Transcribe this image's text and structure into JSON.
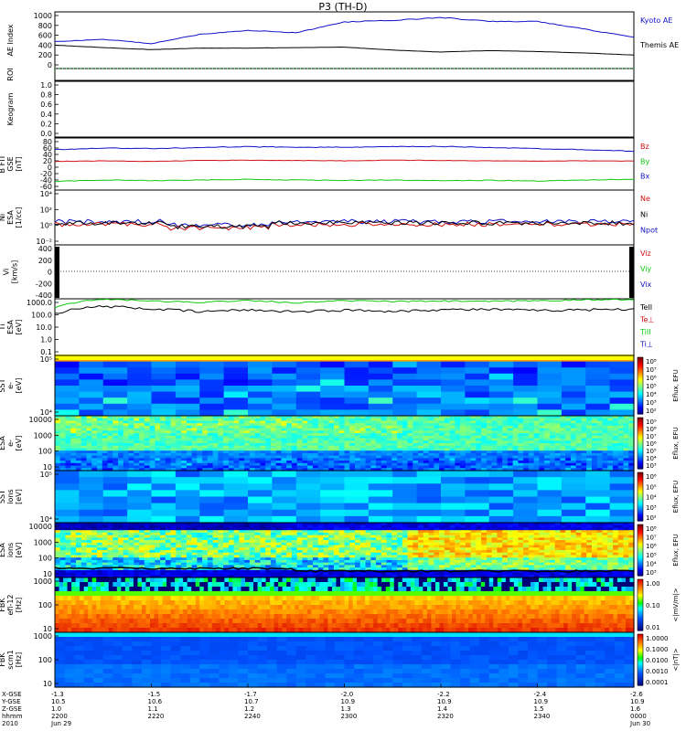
{
  "title": "P3 (TH-D)",
  "colors": {
    "blue": "#1010c8",
    "red": "#d01010",
    "green": "#10c810",
    "black": "#000000",
    "yellow": "#ffff00",
    "magenta": "#ff00ff"
  },
  "panels": [
    {
      "key": "ae",
      "ylabel": [
        "AE Index"
      ],
      "ticks": [
        "1000",
        "800",
        "600",
        "400",
        "200",
        "0"
      ],
      "legend": [
        {
          "text": "Kyoto AE",
          "color": "blue"
        },
        {
          "text": "Themis AE",
          "color": "black"
        }
      ]
    },
    {
      "key": "roi",
      "ylabel": [
        "ROI"
      ],
      "ticks": [],
      "legend": []
    },
    {
      "key": "keogram",
      "ylabel": [
        "Keogram"
      ],
      "ticks": [
        "1.0",
        "0.8",
        "0.6",
        "0.4",
        "0.2",
        "0.0"
      ],
      "legend": []
    },
    {
      "key": "bfit",
      "ylabel": [
        "B FIT",
        "GSE",
        "[nT]"
      ],
      "ticks": [
        "80",
        "60",
        "40",
        "20",
        "0",
        "-20",
        "-40",
        "-60"
      ],
      "legend": [
        {
          "text": "Bz",
          "color": "red"
        },
        {
          "text": "By",
          "color": "green"
        },
        {
          "text": "Bx",
          "color": "blue"
        }
      ]
    },
    {
      "key": "ni",
      "ylabel": [
        "Ni",
        "ESA",
        "[1/cc]"
      ],
      "ticks": [
        "10⁴",
        "10²",
        "10⁰",
        "10⁻²"
      ],
      "legend": [
        {
          "text": "Ne",
          "color": "red"
        },
        {
          "text": "Ni",
          "color": "black"
        },
        {
          "text": "Npot",
          "color": "blue"
        }
      ]
    },
    {
      "key": "vi",
      "ylabel": [
        "Vi",
        "[km/s]"
      ],
      "ticks": [
        "400",
        "200",
        "0",
        "-200",
        "-400"
      ],
      "legend": [
        {
          "text": "Viz",
          "color": "red"
        },
        {
          "text": "Viy",
          "color": "green"
        },
        {
          "text": "Vix",
          "color": "blue"
        }
      ]
    },
    {
      "key": "ti",
      "ylabel": [
        "Ti",
        "ESA",
        "[eV]"
      ],
      "ticks": [
        "1000.0",
        "100.0",
        "10.0",
        "1.0",
        "0.1"
      ],
      "legend": [
        {
          "text": "TeII",
          "color": "black"
        },
        {
          "text": "Te⊥",
          "color": "red"
        },
        {
          "text": "TiII",
          "color": "green"
        },
        {
          "text": "Ti⊥",
          "color": "blue"
        }
      ]
    },
    {
      "key": "sste",
      "ylabel": [
        "SST",
        "e-",
        "[eV]"
      ],
      "ticks": [
        "10⁵",
        "10⁴"
      ],
      "legend": []
    },
    {
      "key": "esae",
      "ylabel": [
        "ESA",
        "e-",
        "[eV]"
      ],
      "ticks": [
        "10000",
        "1000",
        "100",
        "10"
      ],
      "legend": []
    },
    {
      "key": "ssti",
      "ylabel": [
        "SST",
        "ions",
        "[eV]"
      ],
      "ticks": [
        "10⁵",
        "10⁴"
      ],
      "legend": []
    },
    {
      "key": "esai",
      "ylabel": [
        "ESA",
        "ions",
        "[eV]"
      ],
      "ticks": [
        "10000",
        "1000",
        "100",
        "10"
      ],
      "legend": []
    },
    {
      "key": "fbke",
      "ylabel": [
        "FBK",
        "efi-12",
        "[Hz]"
      ],
      "ticks": [
        "1000",
        "100",
        "10"
      ],
      "legend": []
    },
    {
      "key": "fbkb",
      "ylabel": [
        "FBK",
        "scm1",
        "[Hz]"
      ],
      "ticks": [
        "1000",
        "100",
        "10"
      ],
      "legend": []
    }
  ],
  "colorbars": [
    {
      "key": "sste",
      "label": "Eflux, EFU",
      "ticks": [
        "10⁸",
        "10⁷",
        "10⁶",
        "10⁵",
        "10⁴",
        "10³",
        "10²"
      ]
    },
    {
      "key": "esae",
      "label": "Eflux, EFU",
      "ticks": [
        "10⁹",
        "10⁸",
        "10⁷",
        "10⁶",
        "10⁵",
        "10⁴",
        "10³"
      ]
    },
    {
      "key": "ssti",
      "label": "Eflux, EFU",
      "ticks": [
        "10⁶",
        "10⁵",
        "10⁴",
        "10³",
        "10²"
      ]
    },
    {
      "key": "esai",
      "label": "Eflux, EFU",
      "ticks": [
        "10⁸",
        "10⁷",
        "10⁶",
        "10⁵",
        "10⁴",
        "10³"
      ]
    },
    {
      "key": "fbke",
      "label": "<|mV/m|>",
      "ticks": [
        "1.00",
        "0.10",
        "0.01"
      ]
    },
    {
      "key": "fbkb",
      "label": "<|nT|>",
      "ticks": [
        "1.0000",
        "0.1000",
        "0.0100",
        "0.0010",
        "0.0001"
      ]
    }
  ],
  "xaxis": {
    "row_labels": [
      "X-GSE",
      "Y-GSE",
      "Z-GSE",
      "hhmm",
      "2010"
    ],
    "columns": [
      {
        "vals": [
          "-1.3",
          "10.5",
          "1.0",
          "2200",
          "Jun 29"
        ]
      },
      {
        "vals": [
          "-1.5",
          "10.6",
          "1.1",
          "2220",
          ""
        ]
      },
      {
        "vals": [
          "-1.7",
          "10.7",
          "1.2",
          "2240",
          ""
        ]
      },
      {
        "vals": [
          "-2.0",
          "10.9",
          "1.3",
          "2300",
          ""
        ]
      },
      {
        "vals": [
          "-2.2",
          "10.9",
          "1.4",
          "2320",
          ""
        ]
      },
      {
        "vals": [
          "-2.4",
          "10.9",
          "1.5",
          "2340",
          ""
        ]
      },
      {
        "vals": [
          "-2.6",
          "10.9",
          "1.6",
          "0000",
          "Jun 30"
        ]
      }
    ]
  },
  "chart_data": {
    "type": "line",
    "title": "P3 (TH-D)",
    "time_range": [
      "2010-06-29 22:00",
      "2010-06-30 00:00"
    ],
    "series": [
      {
        "name": "Kyoto AE",
        "panel": "ae",
        "x": [
          "22:00",
          "22:10",
          "22:20",
          "22:30",
          "22:40",
          "22:50",
          "23:00",
          "23:10",
          "23:20",
          "23:30",
          "23:40",
          "23:50",
          "00:00"
        ],
        "values": [
          470,
          520,
          430,
          620,
          700,
          650,
          870,
          900,
          960,
          880,
          880,
          720,
          560
        ]
      },
      {
        "name": "Themis AE",
        "panel": "ae",
        "x": [
          "22:00",
          "22:10",
          "22:20",
          "22:30",
          "22:40",
          "22:50",
          "23:00",
          "23:10",
          "23:20",
          "23:30",
          "23:40",
          "23:50",
          "00:00"
        ],
        "values": [
          400,
          350,
          310,
          340,
          340,
          350,
          360,
          300,
          260,
          290,
          270,
          240,
          200
        ]
      },
      {
        "name": "Bz",
        "panel": "bfit",
        "values": [
          55,
          60,
          58,
          62,
          64,
          63,
          62,
          64,
          65,
          62,
          58,
          55,
          50
        ]
      },
      {
        "name": "By",
        "panel": "bfit",
        "values": [
          18,
          20,
          18,
          21,
          22,
          21,
          20,
          22,
          21,
          20,
          19,
          20,
          19
        ]
      },
      {
        "name": "Bx",
        "panel": "bfit",
        "values": [
          -45,
          -40,
          -42,
          -40,
          -38,
          -40,
          -41,
          -40,
          -42,
          -41,
          -43,
          -40,
          -38
        ]
      },
      {
        "name": "TiII",
        "panel": "ti",
        "values": [
          400,
          1800,
          1300,
          1000,
          1500,
          900,
          1400,
          1200,
          1300,
          1200,
          1400,
          1600,
          1800
        ]
      },
      {
        "name": "TeII",
        "panel": "ti",
        "values": [
          120,
          500,
          300,
          180,
          250,
          180,
          240,
          200,
          260,
          280,
          220,
          260,
          300
        ]
      }
    ]
  }
}
